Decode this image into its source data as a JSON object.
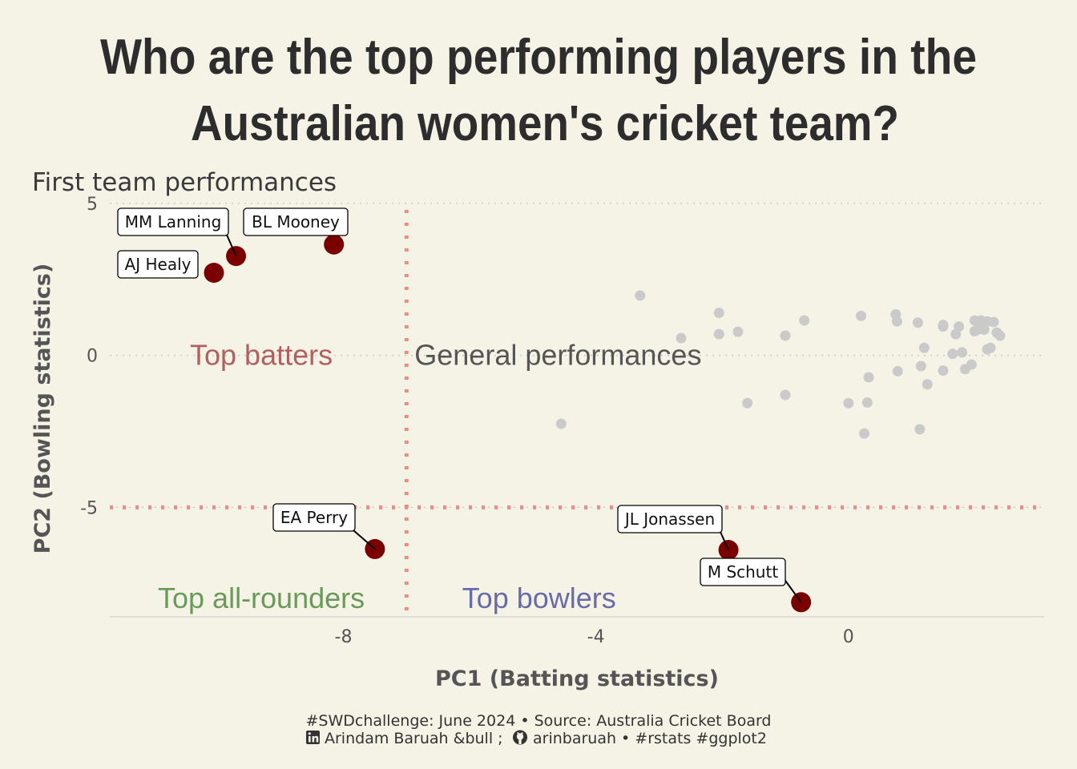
{
  "chart_data": {
    "type": "scatter",
    "title_lines": [
      "Who are the top performing players in the",
      "Australian women's cricket team?"
    ],
    "subtitle": "First team performances",
    "xlabel": "PC1 (Batting statistics)",
    "ylabel": "PC2 (Bowling statistics)",
    "xlim": [
      -11.7,
      3.1
    ],
    "ylim": [
      -8.6,
      5.0
    ],
    "x_ticks": [
      {
        "value": -8,
        "label": "-8"
      },
      {
        "value": -4,
        "label": "-4"
      },
      {
        "value": 0,
        "label": "0"
      }
    ],
    "y_ticks": [
      {
        "value": 5,
        "label": "5"
      },
      {
        "value": 0,
        "label": "0"
      },
      {
        "value": -5,
        "label": "-5"
      }
    ],
    "threshold_lines": {
      "x": -7.0,
      "y": -5.0,
      "color": "#f08a84"
    },
    "quadrant_labels": [
      {
        "text": "Top batters",
        "x": -9.3,
        "y": 0.0,
        "color": "#b06060"
      },
      {
        "text": "General performances",
        "x": -4.6,
        "y": 0.0,
        "color": "#555555"
      },
      {
        "text": "Top all-rounders",
        "x": -9.3,
        "y": -8.0,
        "color": "#6a9a5a"
      },
      {
        "text": "Top bowlers",
        "x": -4.9,
        "y": -8.0,
        "color": "#6a6aaa"
      }
    ],
    "highlight_color": "#7a0000",
    "general_color": "#cacaca",
    "highlighted_players": [
      {
        "name": "MM Lanning",
        "x": -9.7,
        "y": 3.27
      },
      {
        "name": "BL Mooney",
        "x": -8.15,
        "y": 3.65
      },
      {
        "name": "AJ Healy",
        "x": -10.05,
        "y": 2.72
      },
      {
        "name": "EA Perry",
        "x": -7.5,
        "y": -6.37
      },
      {
        "name": "JL Jonassen",
        "x": -1.9,
        "y": -6.4
      },
      {
        "name": "M Schutt",
        "x": -0.75,
        "y": -8.12
      }
    ],
    "general_players": [
      [
        -3.3,
        1.97
      ],
      [
        -2.65,
        0.57
      ],
      [
        -2.05,
        1.4
      ],
      [
        -2.05,
        0.7
      ],
      [
        -1.75,
        0.78
      ],
      [
        -1.0,
        0.65
      ],
      [
        -0.7,
        1.15
      ],
      [
        -4.55,
        -2.25
      ],
      [
        -1.6,
        -1.57
      ],
      [
        -1.0,
        -1.3
      ],
      [
        0.2,
        1.3
      ],
      [
        0.75,
        1.35
      ],
      [
        0.77,
        1.12
      ],
      [
        1.1,
        1.08
      ],
      [
        1.5,
        1.0
      ],
      [
        1.5,
        0.95
      ],
      [
        1.75,
        0.95
      ],
      [
        1.7,
        0.7
      ],
      [
        2.0,
        1.15
      ],
      [
        2.1,
        1.15
      ],
      [
        2.2,
        1.12
      ],
      [
        2.3,
        1.1
      ],
      [
        2.05,
        0.85
      ],
      [
        2.0,
        0.8
      ],
      [
        2.15,
        0.85
      ],
      [
        2.35,
        0.75
      ],
      [
        2.4,
        0.65
      ],
      [
        2.25,
        0.25
      ],
      [
        2.2,
        0.2
      ],
      [
        1.95,
        -0.3
      ],
      [
        1.85,
        -0.45
      ],
      [
        1.8,
        0.1
      ],
      [
        1.65,
        0.05
      ],
      [
        1.2,
        0.25
      ],
      [
        1.15,
        -0.35
      ],
      [
        1.5,
        -0.5
      ],
      [
        1.25,
        -0.95
      ],
      [
        0.78,
        -0.52
      ],
      [
        0.32,
        -0.72
      ],
      [
        0.0,
        -1.57
      ],
      [
        0.3,
        -1.55
      ],
      [
        0.25,
        -2.57
      ],
      [
        1.13,
        -2.43
      ]
    ]
  },
  "caption": {
    "line1": "#SWDchallenge: June 2024 • Source: Australia Cricket Board",
    "line2": "Arindam Baruah &bull ; ",
    "line2_handle": "arinbaruah • #rstats #ggplot2",
    "icons": [
      "linkedin-icon",
      "github-icon"
    ]
  }
}
